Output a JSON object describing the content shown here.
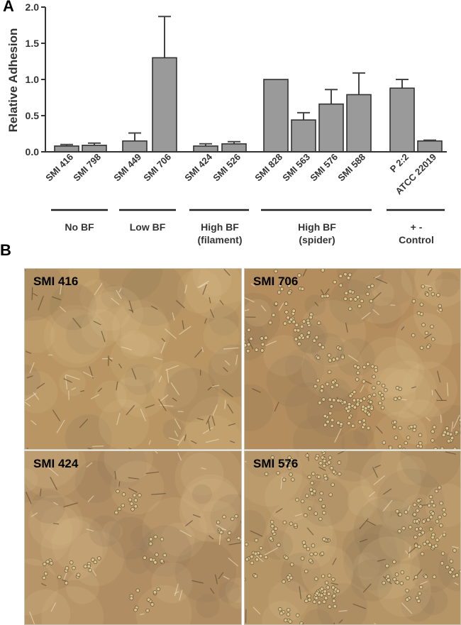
{
  "panels": {
    "a_letter": "A",
    "b_letter": "B"
  },
  "chart_data": {
    "type": "bar",
    "ylabel": "Relative Adhesion",
    "ylim": [
      0,
      2.0
    ],
    "yticks": [
      "0.0",
      "0.5",
      "1.0",
      "1.5",
      "2.0"
    ],
    "yticks_values": [
      0,
      0.5,
      1.0,
      1.5,
      2.0
    ],
    "categories": [
      "SMI 416",
      "SMI 798",
      "SMI 449",
      "SMI 706",
      "SMI 424",
      "SMI 526",
      "SMI 828",
      "SMI 563",
      "SMI 576",
      "SMI 588",
      "P 2:2",
      "ATCC 22019"
    ],
    "values": [
      0.08,
      0.09,
      0.15,
      1.3,
      0.08,
      0.11,
      1.0,
      0.44,
      0.66,
      0.79,
      0.88,
      0.15
    ],
    "errors": [
      0.02,
      0.03,
      0.11,
      0.57,
      0.03,
      0.03,
      0.0,
      0.1,
      0.2,
      0.3,
      0.12,
      0.01
    ],
    "bar_color": "#9a9a9a",
    "groups": [
      {
        "line1": "No BF",
        "line2": "",
        "members": [
          0,
          1
        ]
      },
      {
        "line1": "Low BF",
        "line2": "",
        "members": [
          2,
          3
        ]
      },
      {
        "line1": "High BF",
        "line2": "(filament)",
        "members": [
          4,
          5
        ]
      },
      {
        "line1": "High BF",
        "line2": "(spider)",
        "members": [
          6,
          7,
          8,
          9
        ]
      },
      {
        "line1": "+      -",
        "line2": "Control",
        "members": [
          10,
          11
        ]
      }
    ],
    "grid": false
  },
  "micrographs": [
    {
      "label": "SMI 416",
      "base_color": "#b89563",
      "cell_density": "low"
    },
    {
      "label": "SMI 706",
      "base_color": "#b38d5d",
      "cell_density": "high"
    },
    {
      "label": "SMI 424",
      "base_color": "#b08d62",
      "cell_density": "medium"
    },
    {
      "label": "SMI 576",
      "base_color": "#b59466",
      "cell_density": "high"
    }
  ]
}
